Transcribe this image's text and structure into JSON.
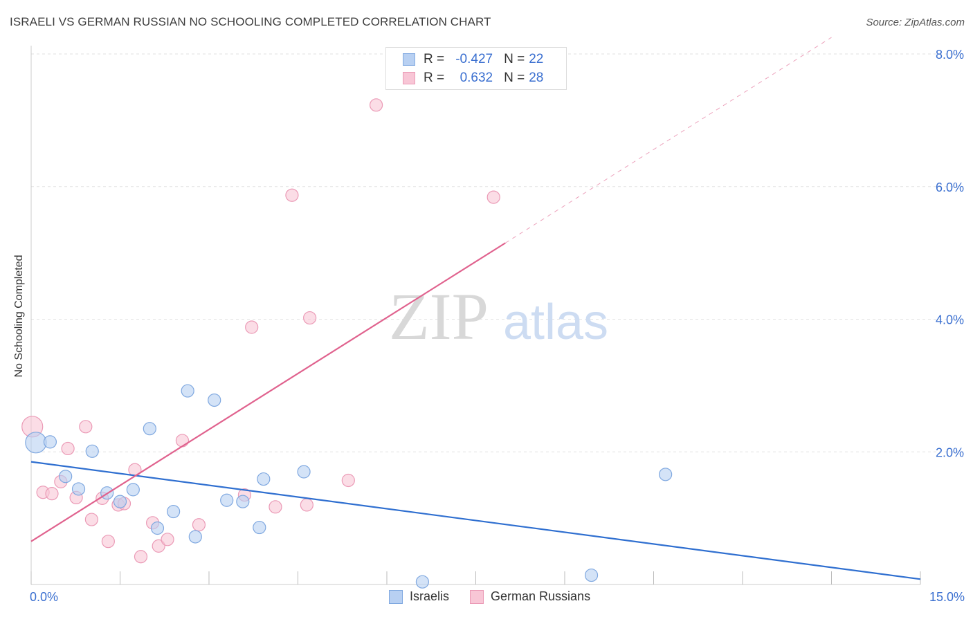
{
  "header": {
    "title": "ISRAELI VS GERMAN RUSSIAN NO SCHOOLING COMPLETED CORRELATION CHART",
    "source": "Source: ZipAtlas.com"
  },
  "watermark": {
    "zip": "ZIP",
    "atlas": "atlas"
  },
  "legend_top": {
    "rows": [
      {
        "r_label": "R =",
        "r_value": "-0.427",
        "n_label": "N =",
        "n_value": "22"
      },
      {
        "r_label": "R =",
        "r_value": "0.632",
        "n_label": "N =",
        "n_value": "28"
      }
    ]
  },
  "legend_bottom": {
    "items": [
      "Israelis",
      "German Russians"
    ]
  },
  "colors": {
    "israelis_fill": "#b8d0f2",
    "israelis_stroke": "#7fa8e0",
    "israelis_line": "#2f6fd0",
    "german_fill": "#f8c6d6",
    "german_stroke": "#eb9ab6",
    "german_line": "#e0628e",
    "tick_label": "#3a6fd0",
    "grid": "#e2e2e2"
  },
  "chart_data": {
    "type": "scatter",
    "title": "ISRAELI VS GERMAN RUSSIAN NO SCHOOLING COMPLETED CORRELATION CHART",
    "xlabel": "",
    "ylabel": "No Schooling Completed",
    "xlim": [
      0,
      15
    ],
    "ylim": [
      0,
      8.3
    ],
    "x_tick_labels": [
      {
        "value": 0,
        "label": "0.0%"
      },
      {
        "value": 15,
        "label": "15.0%"
      }
    ],
    "y_tick_labels": [
      {
        "value": 2,
        "label": "2.0%"
      },
      {
        "value": 4,
        "label": "4.0%"
      },
      {
        "value": 6,
        "label": "6.0%"
      },
      {
        "value": 8,
        "label": "8.0%"
      }
    ],
    "grid": true,
    "legend_position": "bottom",
    "series": [
      {
        "name": "Israelis",
        "r": -0.427,
        "n": 22,
        "points": [
          {
            "x": 0.08,
            "y": 2.14,
            "size": "large"
          },
          {
            "x": 0.32,
            "y": 2.15
          },
          {
            "x": 0.58,
            "y": 1.63
          },
          {
            "x": 0.8,
            "y": 1.44
          },
          {
            "x": 1.03,
            "y": 2.01
          },
          {
            "x": 1.28,
            "y": 1.38
          },
          {
            "x": 1.5,
            "y": 1.25
          },
          {
            "x": 1.72,
            "y": 1.43
          },
          {
            "x": 2.0,
            "y": 2.35
          },
          {
            "x": 2.13,
            "y": 0.85
          },
          {
            "x": 2.4,
            "y": 1.1
          },
          {
            "x": 2.64,
            "y": 2.92
          },
          {
            "x": 2.77,
            "y": 0.72
          },
          {
            "x": 3.09,
            "y": 2.78
          },
          {
            "x": 3.3,
            "y": 1.27
          },
          {
            "x": 3.57,
            "y": 1.25
          },
          {
            "x": 3.85,
            "y": 0.86
          },
          {
            "x": 3.92,
            "y": 1.59
          },
          {
            "x": 4.6,
            "y": 1.7
          },
          {
            "x": 6.6,
            "y": 0.04
          },
          {
            "x": 9.45,
            "y": 0.14
          },
          {
            "x": 10.7,
            "y": 1.66
          }
        ],
        "trend": {
          "x0": 0,
          "y0": 1.85,
          "x1": 15,
          "y1": 0.08
        }
      },
      {
        "name": "German Russians",
        "r": 0.632,
        "n": 28,
        "points": [
          {
            "x": 0.02,
            "y": 2.38,
            "size": "large"
          },
          {
            "x": 0.2,
            "y": 1.39
          },
          {
            "x": 0.35,
            "y": 1.37
          },
          {
            "x": 0.5,
            "y": 1.55
          },
          {
            "x": 0.62,
            "y": 2.05
          },
          {
            "x": 0.76,
            "y": 1.31
          },
          {
            "x": 0.92,
            "y": 2.38
          },
          {
            "x": 1.02,
            "y": 0.98
          },
          {
            "x": 1.2,
            "y": 1.3
          },
          {
            "x": 1.3,
            "y": 0.65
          },
          {
            "x": 1.47,
            "y": 1.2
          },
          {
            "x": 1.57,
            "y": 1.22
          },
          {
            "x": 1.75,
            "y": 1.73
          },
          {
            "x": 1.85,
            "y": 0.42
          },
          {
            "x": 2.05,
            "y": 0.93
          },
          {
            "x": 2.15,
            "y": 0.58
          },
          {
            "x": 2.3,
            "y": 0.68
          },
          {
            "x": 2.55,
            "y": 2.17
          },
          {
            "x": 2.83,
            "y": 0.9
          },
          {
            "x": 3.6,
            "y": 1.35
          },
          {
            "x": 3.72,
            "y": 3.88
          },
          {
            "x": 4.12,
            "y": 1.17
          },
          {
            "x": 4.4,
            "y": 5.87
          },
          {
            "x": 4.65,
            "y": 1.2
          },
          {
            "x": 4.7,
            "y": 4.02
          },
          {
            "x": 5.35,
            "y": 1.57
          },
          {
            "x": 5.82,
            "y": 7.23
          },
          {
            "x": 7.8,
            "y": 5.84
          }
        ],
        "trend": {
          "x0": 0,
          "y0": 0.65,
          "x1": 8.0,
          "y1": 5.15,
          "dash_x1": 13.5,
          "dash_y1": 8.25
        }
      }
    ]
  }
}
